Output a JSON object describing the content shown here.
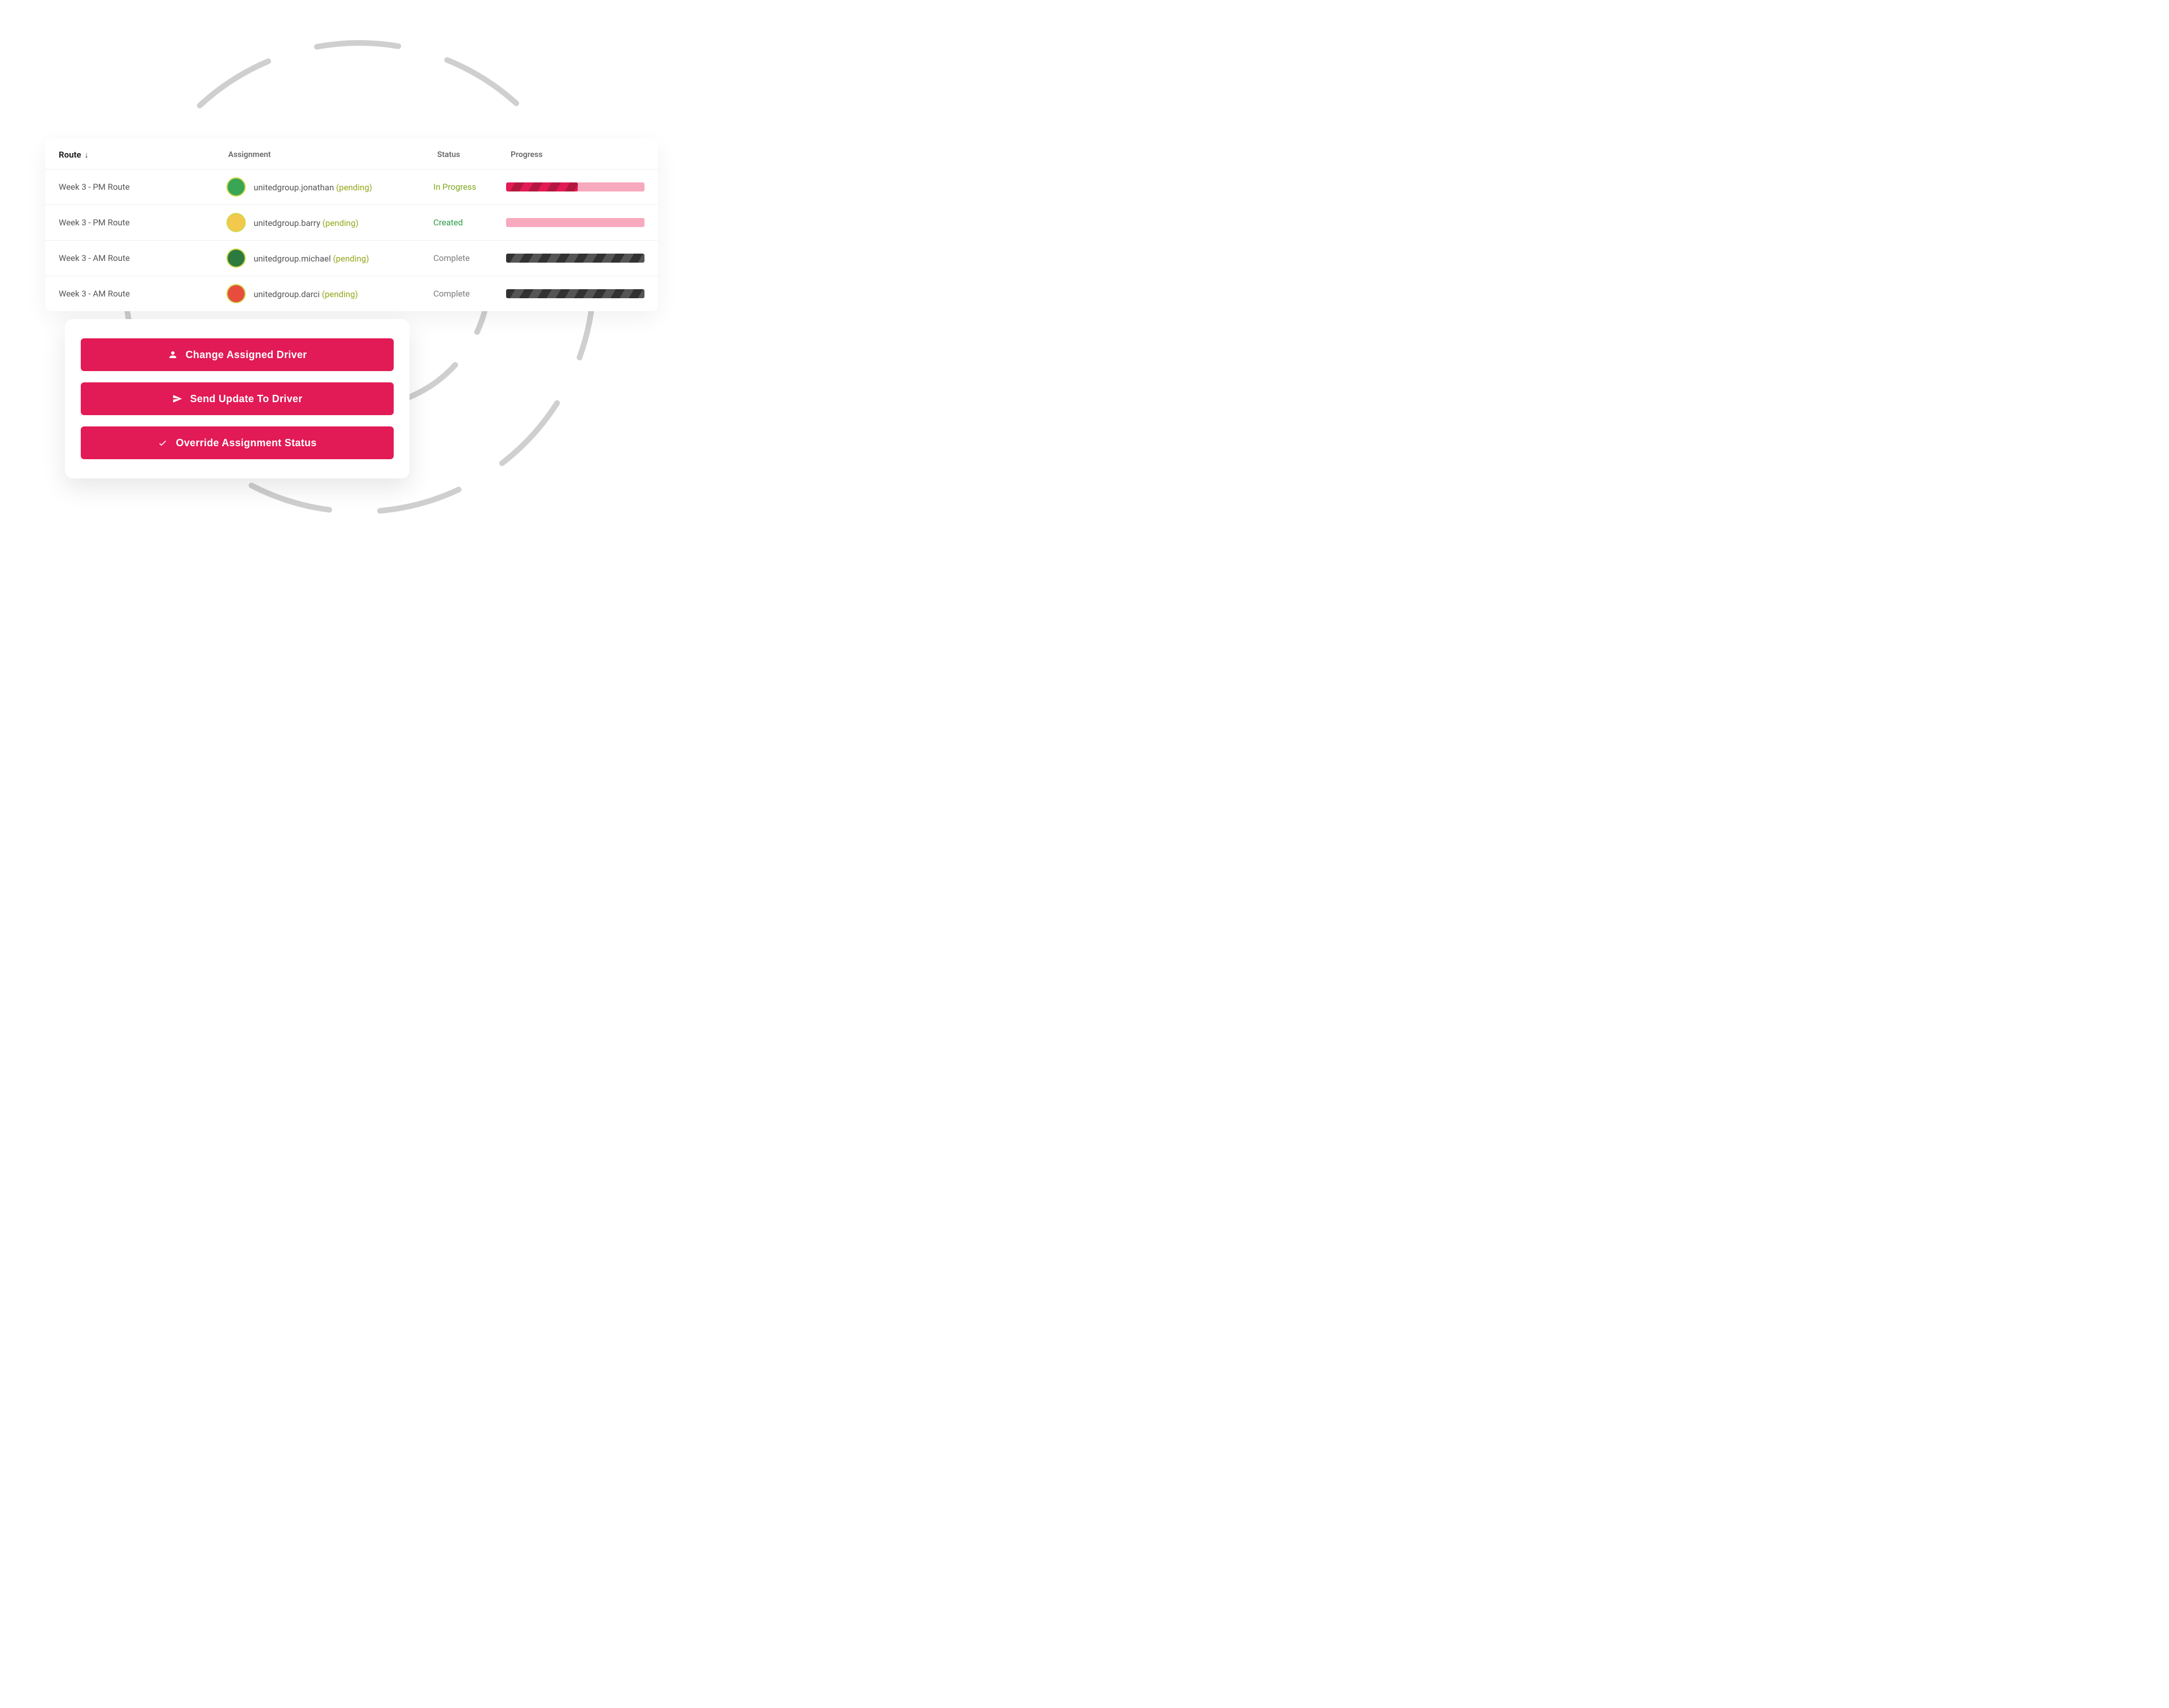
{
  "colors": {
    "accent": "#e21a55",
    "accent_dark": "#b3173f",
    "pink_track": "#f7a9bd",
    "gray_track": "#7a7a7a",
    "gray_dark": "#323232",
    "gray_mid": "#555555",
    "circle": "#cfcfcf",
    "border": "#f0f0f0",
    "text": "#555555",
    "pending_text": "#95a61a",
    "created_text": "#2c9a45",
    "complete_text": "#7a7a7a"
  },
  "background_circles": {
    "inner_radius": 230,
    "outer_radius": 415,
    "stroke_width": 10,
    "dash": "70 80",
    "color": "#cfcfcf"
  },
  "table": {
    "columns": {
      "route": "Route",
      "assignment": "Assignment",
      "status": "Status",
      "progress": "Progress"
    },
    "sort": {
      "column": "route",
      "direction": "asc",
      "icon": "arrow-down"
    },
    "rows": [
      {
        "route": "Week 3 - PM Route",
        "assignee": "unitedgroup.jonathan",
        "pending_label": "(pending)",
        "avatar_bg": "#3aa655",
        "status": "In Progress",
        "status_class": "status-inprogress",
        "progress_pct": 52,
        "progress_variant": "pink"
      },
      {
        "route": "Week 3 - PM Route",
        "assignee": "unitedgroup.barry",
        "pending_label": "(pending)",
        "avatar_bg": "#f2c94c",
        "status": "Created",
        "status_class": "status-created",
        "progress_pct": 0,
        "progress_variant": "pink"
      },
      {
        "route": "Week 3 - AM Route",
        "assignee": "unitedgroup.michael",
        "pending_label": "(pending)",
        "avatar_bg": "#2d7a3e",
        "status": "Complete",
        "status_class": "status-complete",
        "progress_pct": 100,
        "progress_variant": "gray"
      },
      {
        "route": "Week 3 - AM Route",
        "assignee": "unitedgroup.darci",
        "pending_label": "(pending)",
        "avatar_bg": "#e74c3c",
        "status": "Complete",
        "status_class": "status-complete",
        "progress_pct": 100,
        "progress_variant": "gray"
      }
    ]
  },
  "actions": {
    "change_driver": "Change Assigned Driver",
    "send_update": "Send Update To Driver",
    "override_status": "Override Assignment Status"
  }
}
